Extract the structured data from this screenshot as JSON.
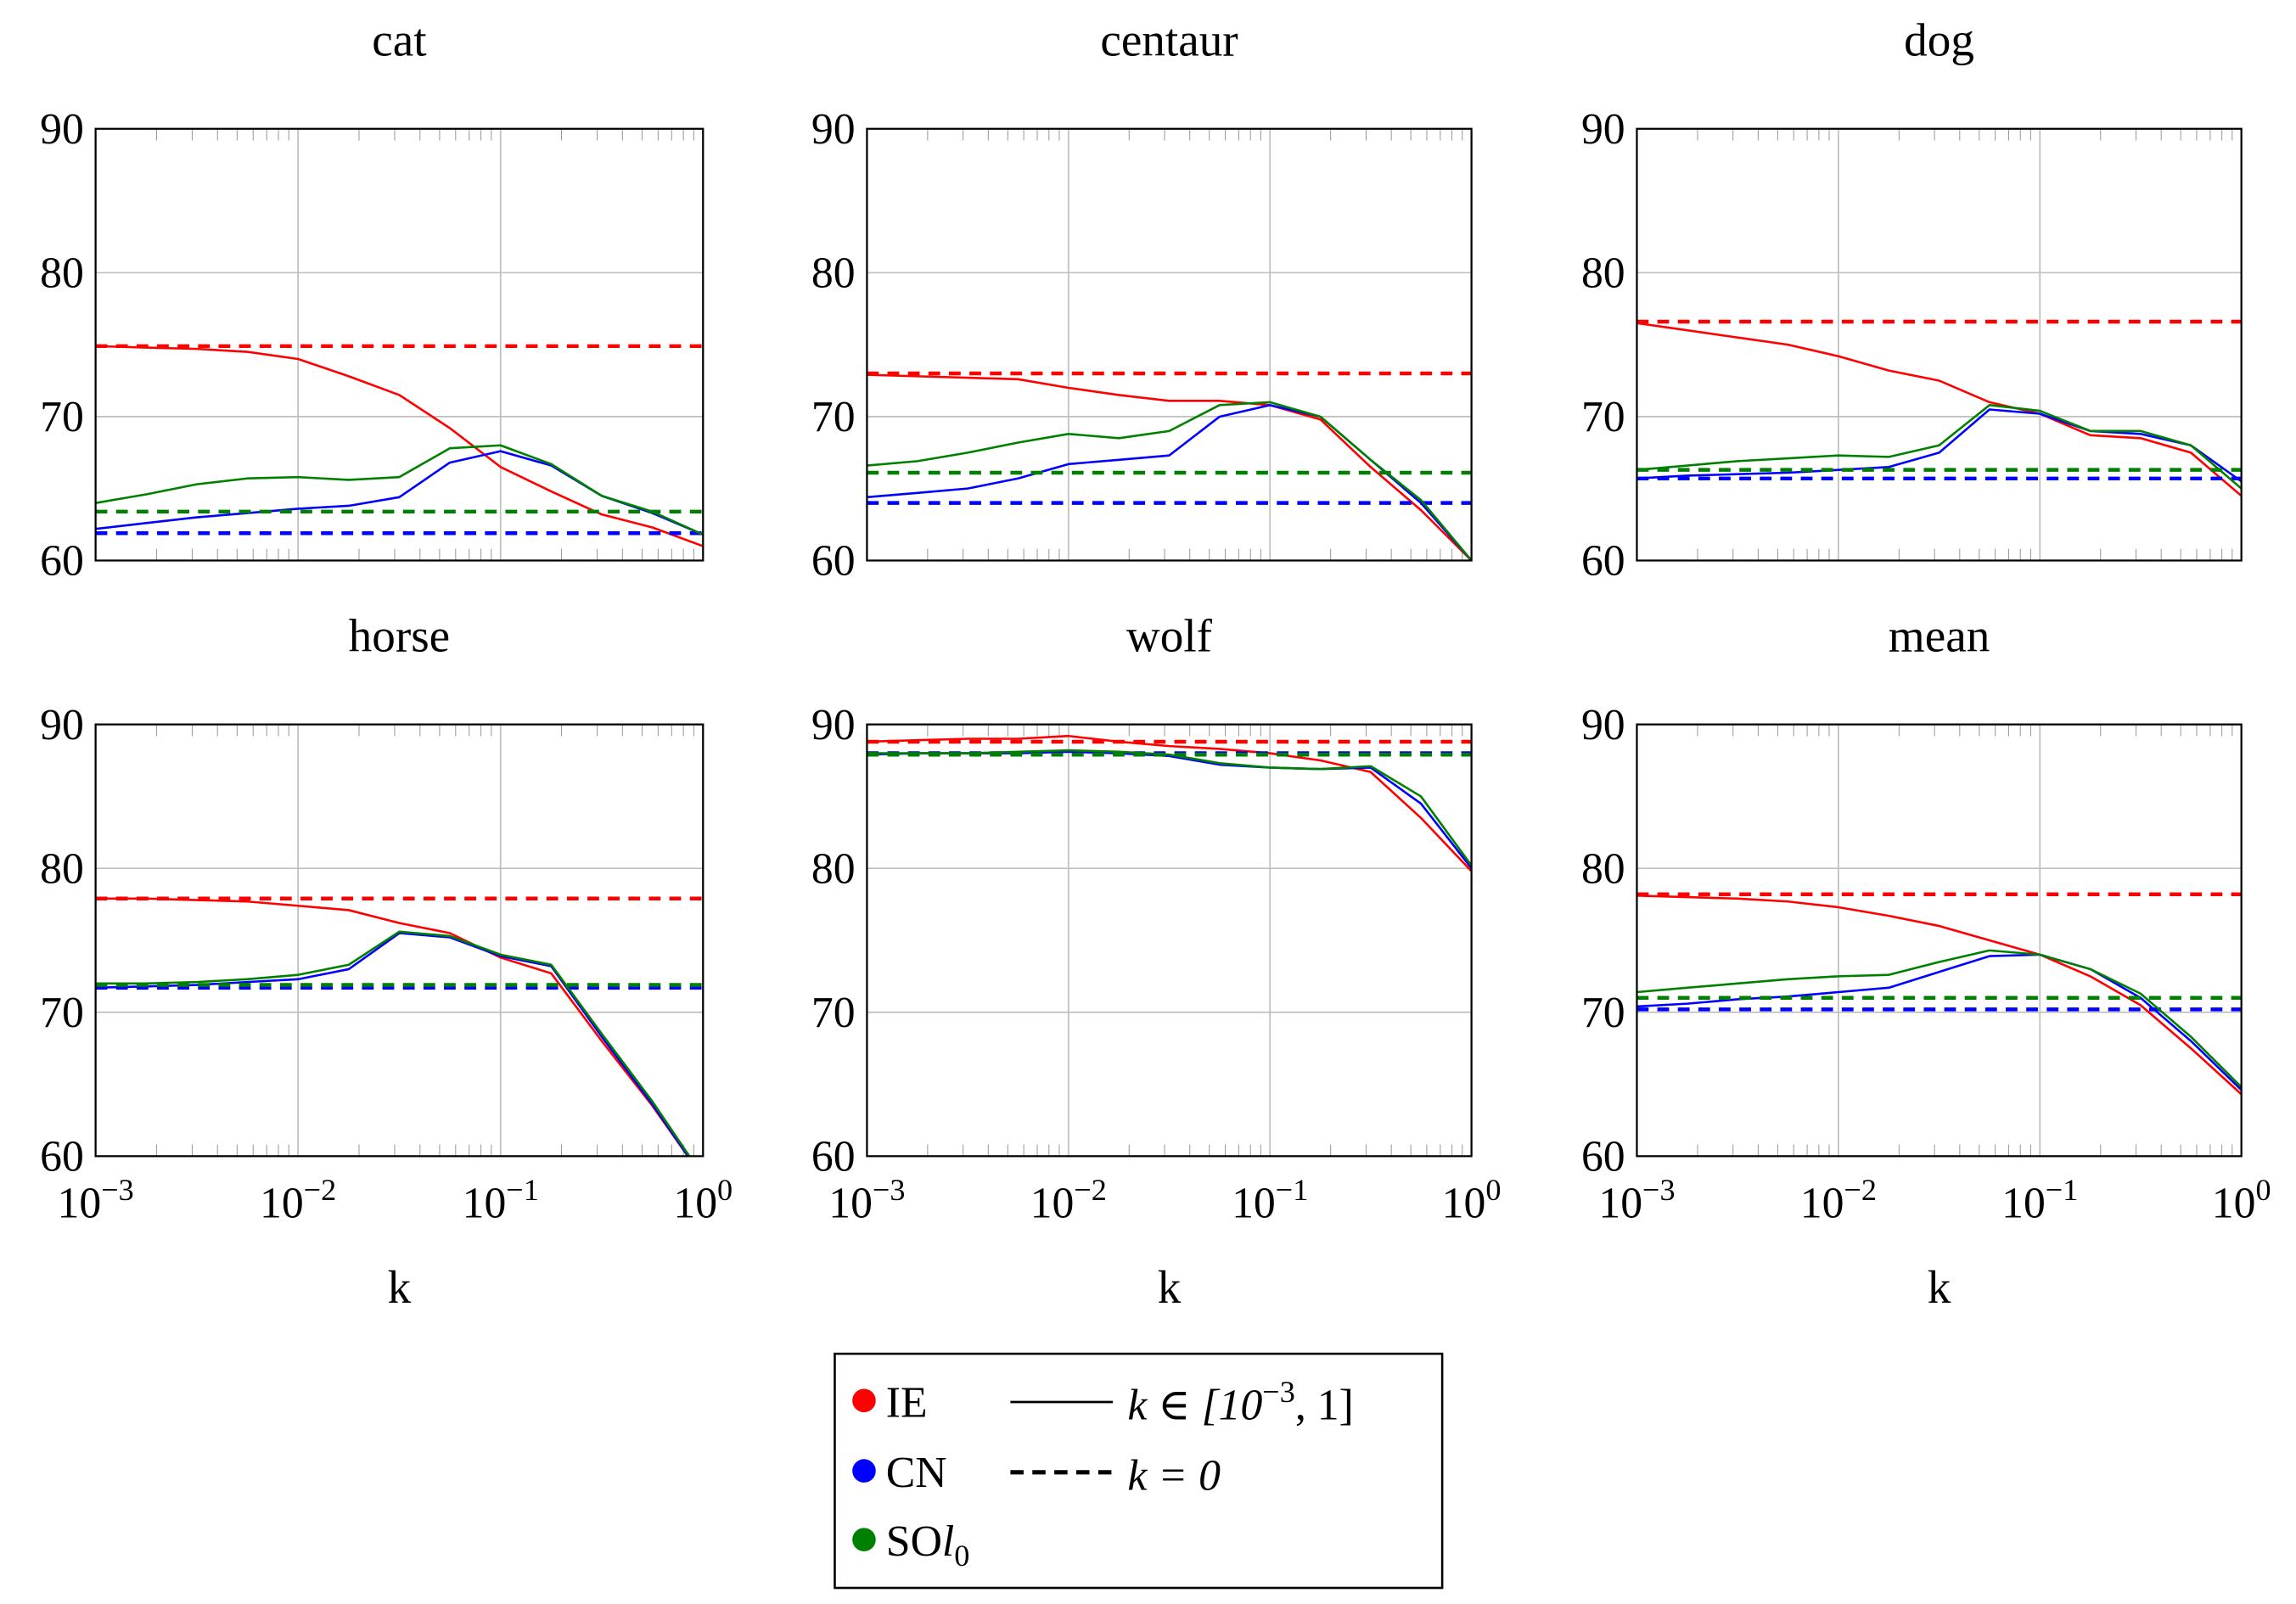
{
  "chart_data": {
    "type": "line",
    "xscale": "log",
    "xlim": [
      0.001,
      1
    ],
    "ylim": [
      60,
      90
    ],
    "grid": true,
    "xlabel": "k",
    "yticks": [
      60,
      70,
      80,
      90
    ],
    "xticks": [
      {
        "value": 0.001,
        "base": "10",
        "exp": "−3"
      },
      {
        "value": 0.01,
        "base": "10",
        "exp": "−2"
      },
      {
        "value": 0.1,
        "base": "10",
        "exp": "−1"
      },
      {
        "value": 1,
        "base": "10",
        "exp": "0"
      }
    ],
    "k": [
      0.001,
      0.00178,
      0.00316,
      0.00562,
      0.01,
      0.0178,
      0.0316,
      0.0562,
      0.1,
      0.178,
      0.316,
      0.562,
      1
    ],
    "colors": {
      "IE": "#ff0000",
      "CN": "#0000ff",
      "SOl0": "#008000"
    },
    "legend_position": "bottom-center",
    "legend": {
      "methods": [
        {
          "key": "IE",
          "label": "IE"
        },
        {
          "key": "CN",
          "label": "CN"
        },
        {
          "key": "SOl0",
          "label": "SO",
          "italic": "l",
          "sub": "0"
        }
      ],
      "styles": [
        {
          "style": "solid",
          "pre": "k ∈ [10",
          "sup": "−3",
          "post": ", 1]"
        },
        {
          "style": "dashed",
          "pre": "k = 0",
          "sup": "",
          "post": ""
        }
      ]
    },
    "panels": [
      {
        "title": "cat",
        "series": {
          "IE": [
            74.9,
            74.8,
            74.7,
            74.5,
            74.0,
            72.8,
            71.5,
            69.2,
            66.5,
            64.8,
            63.2,
            62.3,
            61.0
          ],
          "CN": [
            62.2,
            62.6,
            63.0,
            63.3,
            63.6,
            63.8,
            64.4,
            66.8,
            67.6,
            66.6,
            64.5,
            63.3,
            61.8
          ],
          "SOl0": [
            64.0,
            64.6,
            65.3,
            65.7,
            65.8,
            65.6,
            65.8,
            67.8,
            68.0,
            66.7,
            64.5,
            63.4,
            61.8
          ]
        },
        "baseline": {
          "IE": 74.9,
          "CN": 61.9,
          "SOl0": 63.4
        }
      },
      {
        "title": "centaur",
        "series": {
          "IE": [
            72.9,
            72.8,
            72.7,
            72.6,
            72.0,
            71.5,
            71.1,
            71.1,
            70.8,
            69.8,
            66.5,
            63.5,
            60.0
          ],
          "CN": [
            64.4,
            64.7,
            65.0,
            65.7,
            66.7,
            67.0,
            67.3,
            70.0,
            70.8,
            70.0,
            67.0,
            64.0,
            60.0
          ],
          "SOl0": [
            66.6,
            66.9,
            67.5,
            68.2,
            68.8,
            68.5,
            69.0,
            70.8,
            71.0,
            70.0,
            67.0,
            64.2,
            60.0
          ]
        },
        "baseline": {
          "IE": 73.0,
          "CN": 64.0,
          "SOl0": 66.1
        }
      },
      {
        "title": "dog",
        "series": {
          "IE": [
            76.5,
            76.0,
            75.5,
            75.0,
            74.2,
            73.2,
            72.5,
            71.0,
            70.2,
            68.7,
            68.5,
            67.5,
            64.5
          ],
          "CN": [
            65.7,
            65.9,
            66.0,
            66.1,
            66.3,
            66.5,
            67.5,
            70.5,
            70.2,
            69.0,
            68.8,
            68.0,
            65.5
          ],
          "SOl0": [
            66.3,
            66.6,
            66.9,
            67.1,
            67.3,
            67.2,
            68.0,
            70.8,
            70.4,
            69.0,
            69.0,
            68.0,
            65.0
          ]
        },
        "baseline": {
          "IE": 76.6,
          "CN": 65.7,
          "SOl0": 66.3
        }
      },
      {
        "title": "horse",
        "series": {
          "IE": [
            77.9,
            77.9,
            77.8,
            77.7,
            77.4,
            77.1,
            76.2,
            75.5,
            73.8,
            72.7,
            68.0,
            63.5,
            58.5
          ],
          "CN": [
            71.7,
            71.8,
            71.9,
            72.1,
            72.3,
            73.0,
            75.5,
            75.2,
            73.9,
            73.2,
            68.3,
            63.6,
            58.5
          ],
          "SOl0": [
            72.0,
            72.0,
            72.1,
            72.3,
            72.6,
            73.3,
            75.6,
            75.3,
            74.0,
            73.3,
            68.5,
            63.8,
            58.6
          ]
        },
        "baseline": {
          "IE": 77.9,
          "CN": 71.7,
          "SOl0": 71.9
        }
      },
      {
        "title": "wolf",
        "series": {
          "IE": [
            88.8,
            88.9,
            89.0,
            89.0,
            89.2,
            88.8,
            88.5,
            88.3,
            88.0,
            87.5,
            86.7,
            83.5,
            79.8
          ],
          "CN": [
            87.9,
            88.0,
            88.0,
            88.0,
            88.1,
            88.0,
            87.8,
            87.2,
            87.0,
            86.9,
            87.0,
            84.5,
            80.0
          ],
          "SOl0": [
            88.0,
            88.0,
            88.0,
            88.1,
            88.2,
            88.1,
            87.9,
            87.3,
            87.0,
            86.9,
            87.1,
            85.0,
            80.2
          ]
        },
        "baseline": {
          "IE": 88.8,
          "CN": 88.0,
          "SOl0": 87.9
        }
      },
      {
        "title": "mean",
        "series": {
          "IE": [
            78.1,
            78.0,
            77.9,
            77.7,
            77.3,
            76.7,
            76.0,
            75.0,
            74.0,
            72.5,
            70.5,
            67.5,
            64.3
          ],
          "CN": [
            70.4,
            70.6,
            70.9,
            71.1,
            71.4,
            71.7,
            72.8,
            73.9,
            74.0,
            73.0,
            71.0,
            68.0,
            64.6
          ],
          "SOl0": [
            71.4,
            71.7,
            72.0,
            72.3,
            72.5,
            72.6,
            73.5,
            74.3,
            74.0,
            73.0,
            71.3,
            68.3,
            64.8
          ]
        },
        "baseline": {
          "IE": 78.2,
          "CN": 70.2,
          "SOl0": 71.0
        }
      }
    ]
  }
}
